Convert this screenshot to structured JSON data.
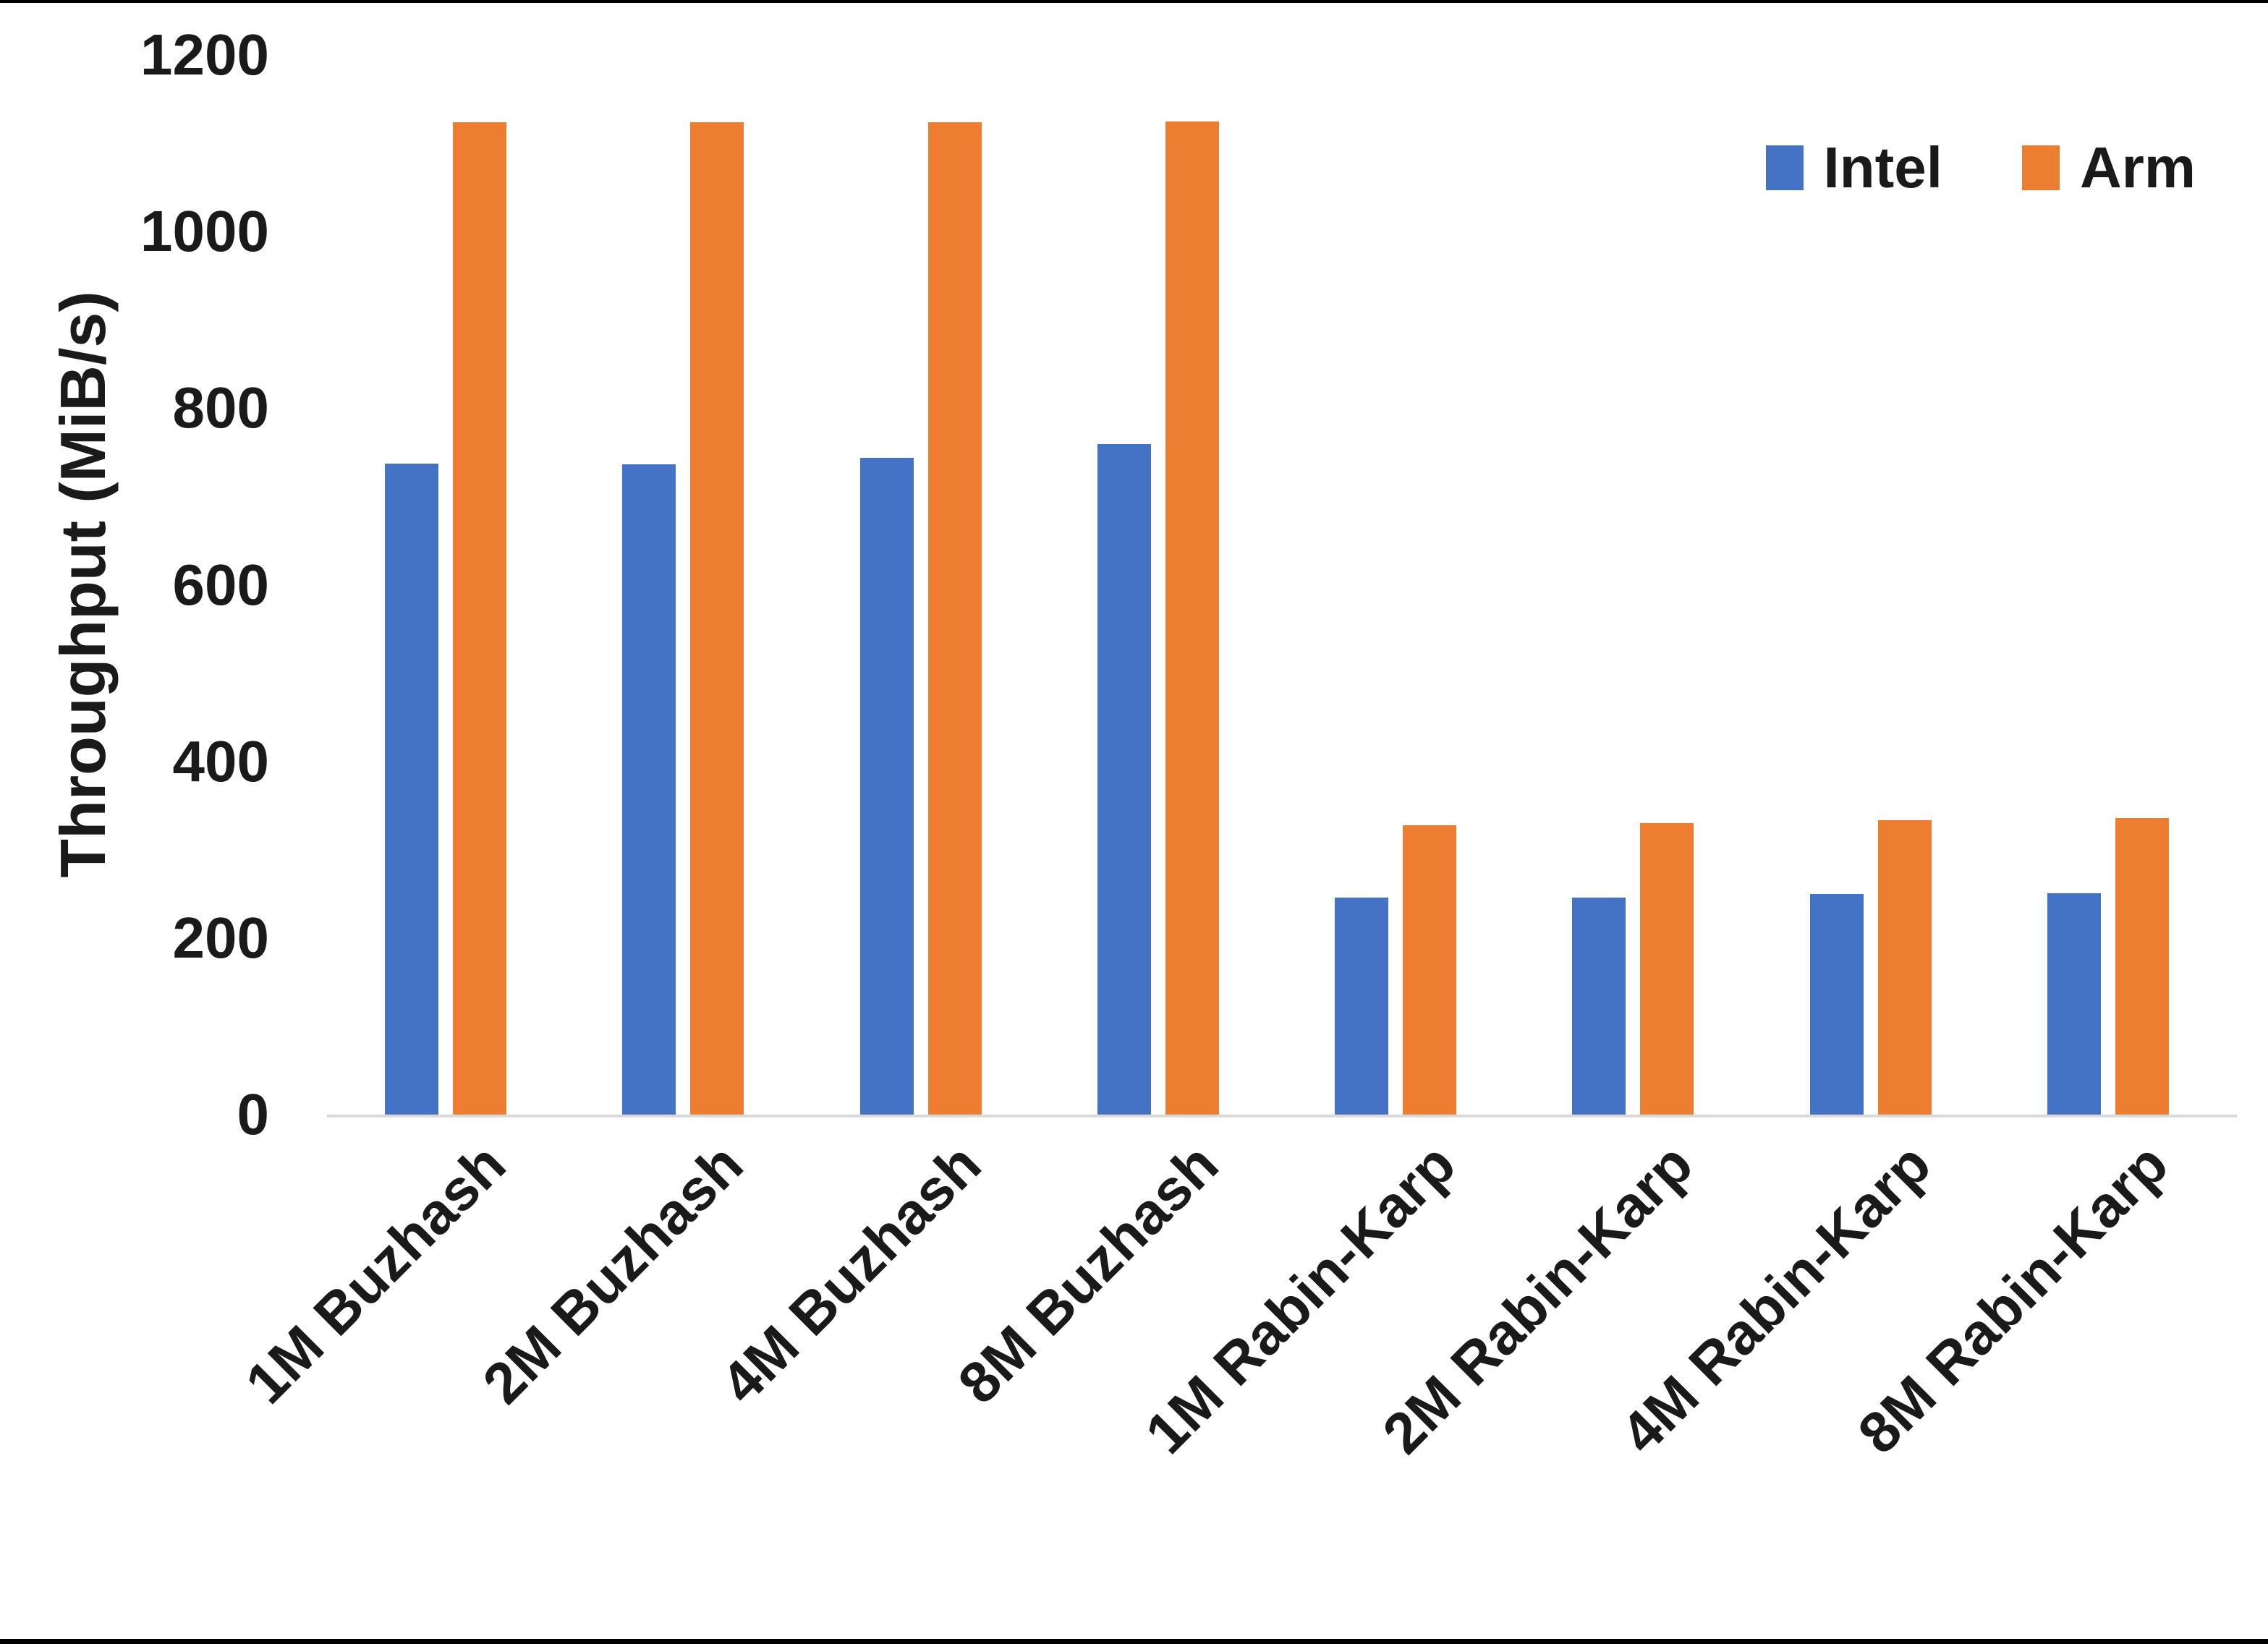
{
  "chart_data": {
    "type": "bar",
    "title": "",
    "xlabel": "",
    "ylabel": "Throughput (MiB/s)",
    "ylim": [
      0,
      1200
    ],
    "ytick_interval": 200,
    "yticks": [
      0,
      200,
      400,
      600,
      800,
      1000,
      1200
    ],
    "grid": false,
    "legend_position": "top-right",
    "background_color": "#ffffff",
    "axis_line_color": "#d9d9d9",
    "text_color": "#1a1a1a",
    "categories": [
      "1M Buzhash",
      "2M Buzhash",
      "4M Buzhash",
      "8M Buzhash",
      "1M Rabin-Karp",
      "2M Rabin-Karp",
      "4M Rabin-Karp",
      "8M Rabin-Karp"
    ],
    "series": [
      {
        "name": "Intel",
        "color": "#4472C4",
        "values": [
          737,
          736,
          744,
          759,
          246,
          246,
          250,
          251
        ]
      },
      {
        "name": "Arm",
        "color": "#ED7D31",
        "values": [
          1124,
          1124,
          1124,
          1125,
          328,
          330,
          333,
          336
        ]
      }
    ]
  }
}
